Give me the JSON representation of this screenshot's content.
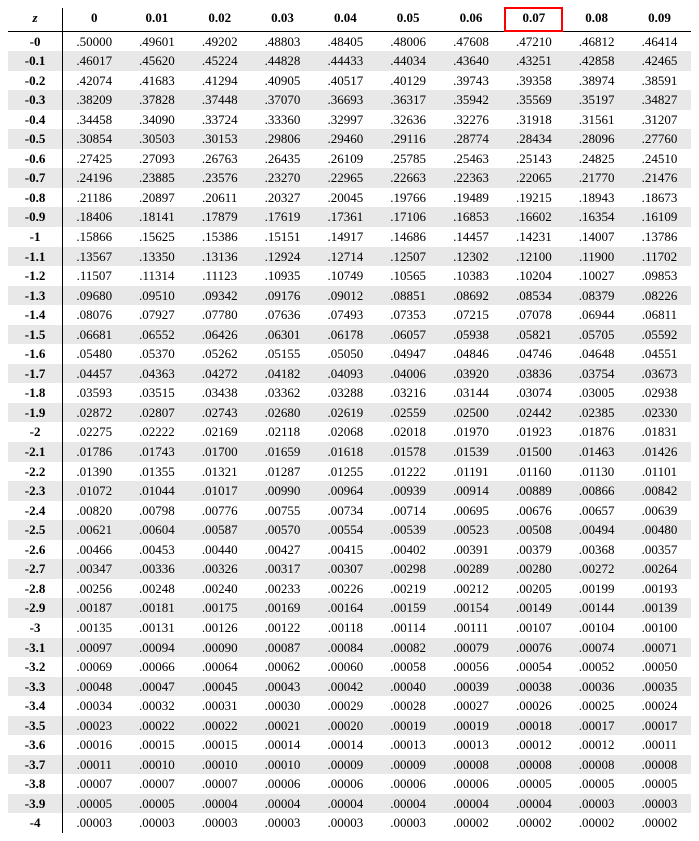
{
  "table": {
    "type": "table",
    "background_color": "#ffffff",
    "shade_color": "#e8e8e8",
    "highlight_border_color": "#ff0000",
    "highlight_col_index": 8,
    "font_family": "Times New Roman",
    "header": [
      "z",
      "0",
      "0.01",
      "0.02",
      "0.03",
      "0.04",
      "0.05",
      "0.06",
      "0.07",
      "0.08",
      "0.09"
    ],
    "rows": [
      [
        "-0",
        ".50000",
        ".49601",
        ".49202",
        ".48803",
        ".48405",
        ".48006",
        ".47608",
        ".47210",
        ".46812",
        ".46414"
      ],
      [
        "-0.1",
        ".46017",
        ".45620",
        ".45224",
        ".44828",
        ".44433",
        ".44034",
        ".43640",
        ".43251",
        ".42858",
        ".42465"
      ],
      [
        "-0.2",
        ".42074",
        ".41683",
        ".41294",
        ".40905",
        ".40517",
        ".40129",
        ".39743",
        ".39358",
        ".38974",
        ".38591"
      ],
      [
        "-0.3",
        ".38209",
        ".37828",
        ".37448",
        ".37070",
        ".36693",
        ".36317",
        ".35942",
        ".35569",
        ".35197",
        ".34827"
      ],
      [
        "-0.4",
        ".34458",
        ".34090",
        ".33724",
        ".33360",
        ".32997",
        ".32636",
        ".32276",
        ".31918",
        ".31561",
        ".31207"
      ],
      [
        "-0.5",
        ".30854",
        ".30503",
        ".30153",
        ".29806",
        ".29460",
        ".29116",
        ".28774",
        ".28434",
        ".28096",
        ".27760"
      ],
      [
        "-0.6",
        ".27425",
        ".27093",
        ".26763",
        ".26435",
        ".26109",
        ".25785",
        ".25463",
        ".25143",
        ".24825",
        ".24510"
      ],
      [
        "-0.7",
        ".24196",
        ".23885",
        ".23576",
        ".23270",
        ".22965",
        ".22663",
        ".22363",
        ".22065",
        ".21770",
        ".21476"
      ],
      [
        "-0.8",
        ".21186",
        ".20897",
        ".20611",
        ".20327",
        ".20045",
        ".19766",
        ".19489",
        ".19215",
        ".18943",
        ".18673"
      ],
      [
        "-0.9",
        ".18406",
        ".18141",
        ".17879",
        ".17619",
        ".17361",
        ".17106",
        ".16853",
        ".16602",
        ".16354",
        ".16109"
      ],
      [
        "-1",
        ".15866",
        ".15625",
        ".15386",
        ".15151",
        ".14917",
        ".14686",
        ".14457",
        ".14231",
        ".14007",
        ".13786"
      ],
      [
        "-1.1",
        ".13567",
        ".13350",
        ".13136",
        ".12924",
        ".12714",
        ".12507",
        ".12302",
        ".12100",
        ".11900",
        ".11702"
      ],
      [
        "-1.2",
        ".11507",
        ".11314",
        ".11123",
        ".10935",
        ".10749",
        ".10565",
        ".10383",
        ".10204",
        ".10027",
        ".09853"
      ],
      [
        "-1.3",
        ".09680",
        ".09510",
        ".09342",
        ".09176",
        ".09012",
        ".08851",
        ".08692",
        ".08534",
        ".08379",
        ".08226"
      ],
      [
        "-1.4",
        ".08076",
        ".07927",
        ".07780",
        ".07636",
        ".07493",
        ".07353",
        ".07215",
        ".07078",
        ".06944",
        ".06811"
      ],
      [
        "-1.5",
        ".06681",
        ".06552",
        ".06426",
        ".06301",
        ".06178",
        ".06057",
        ".05938",
        ".05821",
        ".05705",
        ".05592"
      ],
      [
        "-1.6",
        ".05480",
        ".05370",
        ".05262",
        ".05155",
        ".05050",
        ".04947",
        ".04846",
        ".04746",
        ".04648",
        ".04551"
      ],
      [
        "-1.7",
        ".04457",
        ".04363",
        ".04272",
        ".04182",
        ".04093",
        ".04006",
        ".03920",
        ".03836",
        ".03754",
        ".03673"
      ],
      [
        "-1.8",
        ".03593",
        ".03515",
        ".03438",
        ".03362",
        ".03288",
        ".03216",
        ".03144",
        ".03074",
        ".03005",
        ".02938"
      ],
      [
        "-1.9",
        ".02872",
        ".02807",
        ".02743",
        ".02680",
        ".02619",
        ".02559",
        ".02500",
        ".02442",
        ".02385",
        ".02330"
      ],
      [
        "-2",
        ".02275",
        ".02222",
        ".02169",
        ".02118",
        ".02068",
        ".02018",
        ".01970",
        ".01923",
        ".01876",
        ".01831"
      ],
      [
        "-2.1",
        ".01786",
        ".01743",
        ".01700",
        ".01659",
        ".01618",
        ".01578",
        ".01539",
        ".01500",
        ".01463",
        ".01426"
      ],
      [
        "-2.2",
        ".01390",
        ".01355",
        ".01321",
        ".01287",
        ".01255",
        ".01222",
        ".01191",
        ".01160",
        ".01130",
        ".01101"
      ],
      [
        "-2.3",
        ".01072",
        ".01044",
        ".01017",
        ".00990",
        ".00964",
        ".00939",
        ".00914",
        ".00889",
        ".00866",
        ".00842"
      ],
      [
        "-2.4",
        ".00820",
        ".00798",
        ".00776",
        ".00755",
        ".00734",
        ".00714",
        ".00695",
        ".00676",
        ".00657",
        ".00639"
      ],
      [
        "-2.5",
        ".00621",
        ".00604",
        ".00587",
        ".00570",
        ".00554",
        ".00539",
        ".00523",
        ".00508",
        ".00494",
        ".00480"
      ],
      [
        "-2.6",
        ".00466",
        ".00453",
        ".00440",
        ".00427",
        ".00415",
        ".00402",
        ".00391",
        ".00379",
        ".00368",
        ".00357"
      ],
      [
        "-2.7",
        ".00347",
        ".00336",
        ".00326",
        ".00317",
        ".00307",
        ".00298",
        ".00289",
        ".00280",
        ".00272",
        ".00264"
      ],
      [
        "-2.8",
        ".00256",
        ".00248",
        ".00240",
        ".00233",
        ".00226",
        ".00219",
        ".00212",
        ".00205",
        ".00199",
        ".00193"
      ],
      [
        "-2.9",
        ".00187",
        ".00181",
        ".00175",
        ".00169",
        ".00164",
        ".00159",
        ".00154",
        ".00149",
        ".00144",
        ".00139"
      ],
      [
        "-3",
        ".00135",
        ".00131",
        ".00126",
        ".00122",
        ".00118",
        ".00114",
        ".00111",
        ".00107",
        ".00104",
        ".00100"
      ],
      [
        "-3.1",
        ".00097",
        ".00094",
        ".00090",
        ".00087",
        ".00084",
        ".00082",
        ".00079",
        ".00076",
        ".00074",
        ".00071"
      ],
      [
        "-3.2",
        ".00069",
        ".00066",
        ".00064",
        ".00062",
        ".00060",
        ".00058",
        ".00056",
        ".00054",
        ".00052",
        ".00050"
      ],
      [
        "-3.3",
        ".00048",
        ".00047",
        ".00045",
        ".00043",
        ".00042",
        ".00040",
        ".00039",
        ".00038",
        ".00036",
        ".00035"
      ],
      [
        "-3.4",
        ".00034",
        ".00032",
        ".00031",
        ".00030",
        ".00029",
        ".00028",
        ".00027",
        ".00026",
        ".00025",
        ".00024"
      ],
      [
        "-3.5",
        ".00023",
        ".00022",
        ".00022",
        ".00021",
        ".00020",
        ".00019",
        ".00019",
        ".00018",
        ".00017",
        ".00017"
      ],
      [
        "-3.6",
        ".00016",
        ".00015",
        ".00015",
        ".00014",
        ".00014",
        ".00013",
        ".00013",
        ".00012",
        ".00012",
        ".00011"
      ],
      [
        "-3.7",
        ".00011",
        ".00010",
        ".00010",
        ".00010",
        ".00009",
        ".00009",
        ".00008",
        ".00008",
        ".00008",
        ".00008"
      ],
      [
        "-3.8",
        ".00007",
        ".00007",
        ".00007",
        ".00006",
        ".00006",
        ".00006",
        ".00006",
        ".00005",
        ".00005",
        ".00005"
      ],
      [
        "-3.9",
        ".00005",
        ".00005",
        ".00004",
        ".00004",
        ".00004",
        ".00004",
        ".00004",
        ".00004",
        ".00003",
        ".00003"
      ],
      [
        "-4",
        ".00003",
        ".00003",
        ".00003",
        ".00003",
        ".00003",
        ".00003",
        ".00002",
        ".00002",
        ".00002",
        ".00002"
      ]
    ]
  }
}
